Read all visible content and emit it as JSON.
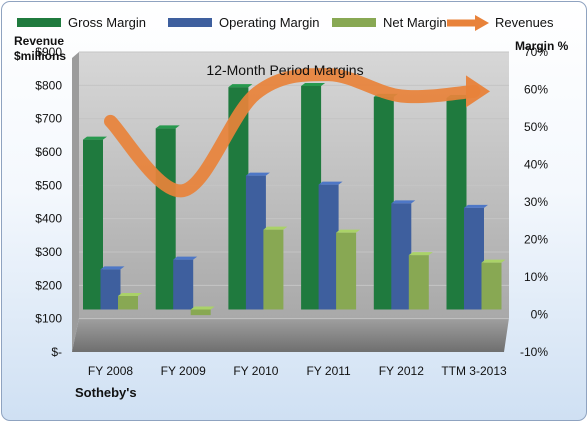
{
  "chart_data": {
    "type": "bar",
    "title": "12-Month Period Margins",
    "source": "Sotheby's",
    "categories": [
      "FY 2008",
      "FY 2009",
      "FY 2010",
      "FY 2011",
      "FY 2012",
      "TTM 3-2013"
    ],
    "left_axis": {
      "title_line1": "Revenue",
      "title_line2": "$millions",
      "ticks": [
        "$-",
        "$100",
        "$200",
        "$300",
        "$400",
        "$500",
        "$600",
        "$700",
        "$800",
        "$900"
      ],
      "ylim": [
        0,
        900
      ]
    },
    "right_axis": {
      "title": "Margin %",
      "ticks": [
        "-10%",
        "0%",
        "10%",
        "20%",
        "30%",
        "40%",
        "50%",
        "60%",
        "70%"
      ],
      "ylim": [
        -10,
        70
      ]
    },
    "legend_position": "top",
    "grid": true,
    "series": [
      {
        "name": "Gross Margin",
        "axis": "right",
        "type": "bar",
        "color": "#1f7a3e",
        "values": [
          45.3,
          48.3,
          59.3,
          59.6,
          56.7,
          56.4
        ]
      },
      {
        "name": "Operating Margin",
        "axis": "right",
        "type": "bar",
        "color": "#3e5f9e",
        "values": [
          10.7,
          13.3,
          35.7,
          33.3,
          28.3,
          27.1
        ]
      },
      {
        "name": "Net Margin",
        "axis": "right",
        "type": "bar",
        "color": "#88a853",
        "values": [
          3.6,
          -1.5,
          21.3,
          20.5,
          14.5,
          12.5
        ]
      },
      {
        "name": "Revenues",
        "axis": "left",
        "type": "line",
        "color": "#e8823a",
        "values": [
          692,
          484,
          775,
          832,
          768,
          782
        ]
      }
    ]
  }
}
